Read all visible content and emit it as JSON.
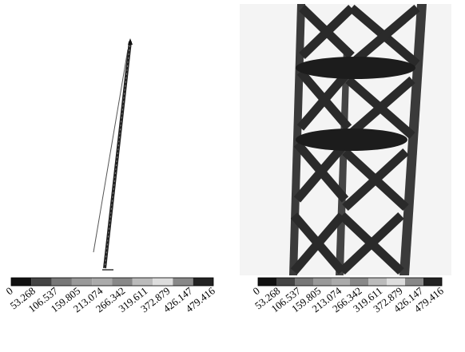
{
  "panels": [
    {
      "legend_labels": [
        "0",
        "53.268",
        "106.537",
        "159.805",
        "213.074",
        "266.342",
        "319.611",
        "372.879",
        "426.147",
        "479.416"
      ]
    },
    {
      "legend_labels": [
        "0",
        "53.268",
        "106.537",
        "159.805",
        "213.074",
        "266.342",
        "319.611",
        "372.879",
        "426.147",
        "479.416"
      ]
    }
  ]
}
